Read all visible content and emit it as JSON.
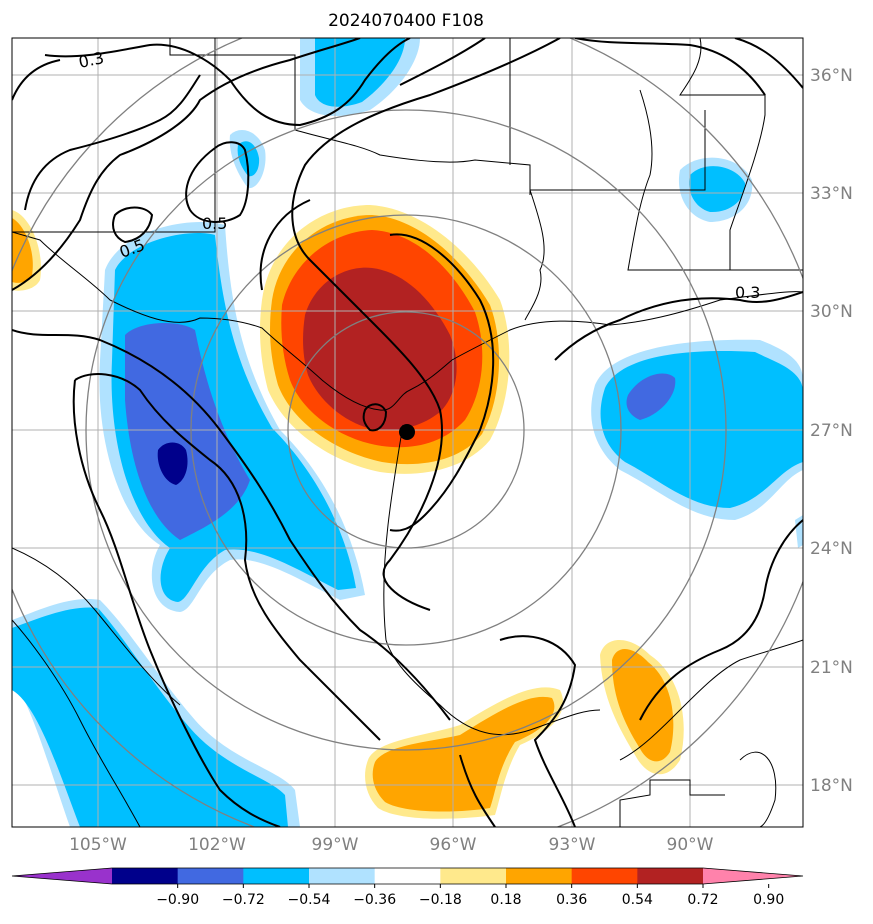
{
  "title": "2024070400 F108",
  "lat_labels": [
    "36°N",
    "33°N",
    "30°N",
    "27°N",
    "24°N",
    "21°N",
    "18°N"
  ],
  "lon_labels": [
    "105°W",
    "102°W",
    "99°W",
    "96°W",
    "93°W",
    "90°W"
  ],
  "colorbar": {
    "tick_labels": [
      "−0.90",
      "−0.72",
      "−0.54",
      "−0.36",
      "−0.18",
      "0.18",
      "0.36",
      "0.54",
      "0.72",
      "0.90"
    ],
    "colors": [
      "#9932cc",
      "#00008b",
      "#4169e1",
      "#00bfff",
      "#b0e2ff",
      "#ffffff",
      "#ffe98c",
      "#ffa500",
      "#ff4500",
      "#b22222",
      "#ff82ab"
    ]
  },
  "contour_labels": [
    "0.3",
    "0.5",
    "0.5",
    "0.3"
  ],
  "palette": {
    "neg_light": "#b0e2ff",
    "neg_mid": "#00bfff",
    "neg_strong": "#4169e1",
    "neg_extreme": "#00008b",
    "pos_light": "#ffe98c",
    "pos_mid": "#ffa500",
    "pos_strong": "#ff4500",
    "pos_extreme": "#b22222",
    "grid": "#b0b0b0",
    "range_rings": "#808080"
  },
  "storm_marker": "filled-black-circle"
}
